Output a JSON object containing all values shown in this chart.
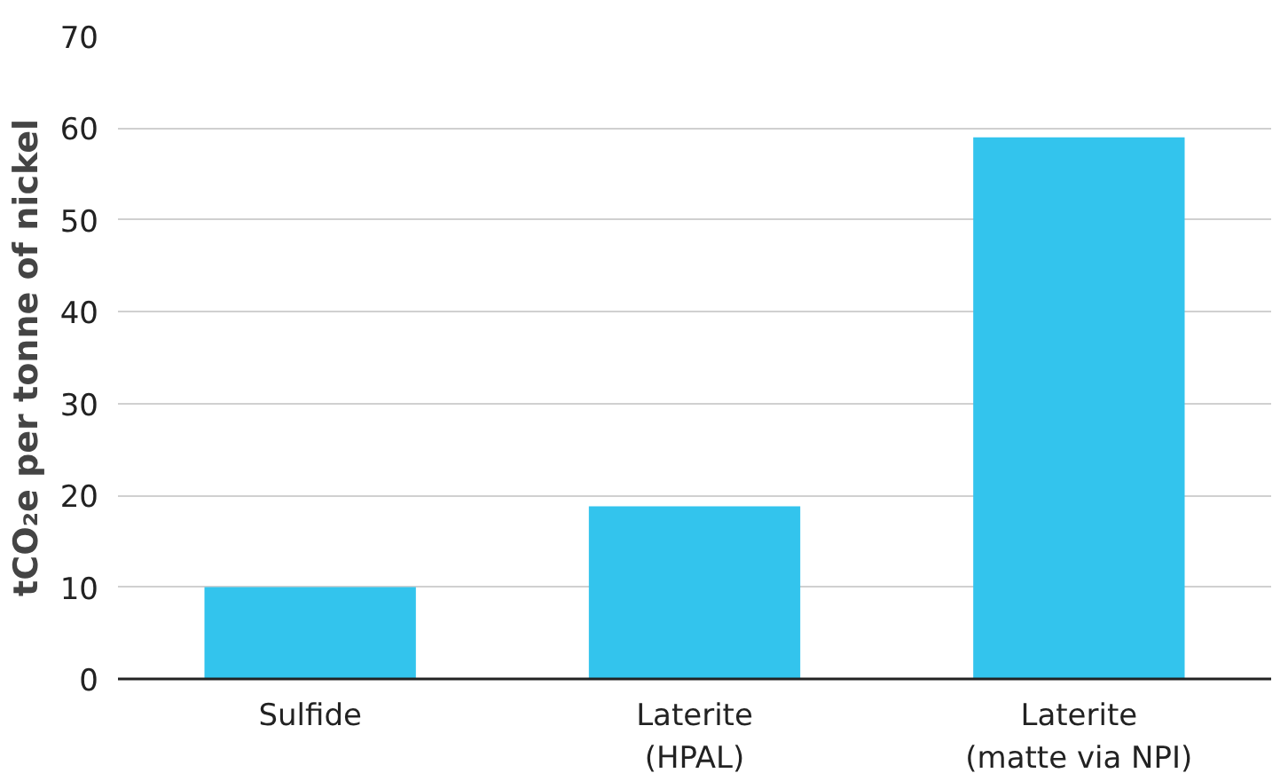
{
  "chart_data": {
    "type": "bar",
    "ylabel": "tCO₂e per tonne of nickel",
    "categories": [
      "Sulfide",
      "Laterite\n(HPAL)",
      "Laterite\n(matte via NPI)"
    ],
    "values": [
      10,
      18.8,
      59
    ],
    "color": "#33c4ed",
    "ylim": [
      0,
      70
    ],
    "yticks": [
      0,
      10,
      20,
      30,
      40,
      50,
      60,
      70
    ],
    "grid": "y"
  }
}
